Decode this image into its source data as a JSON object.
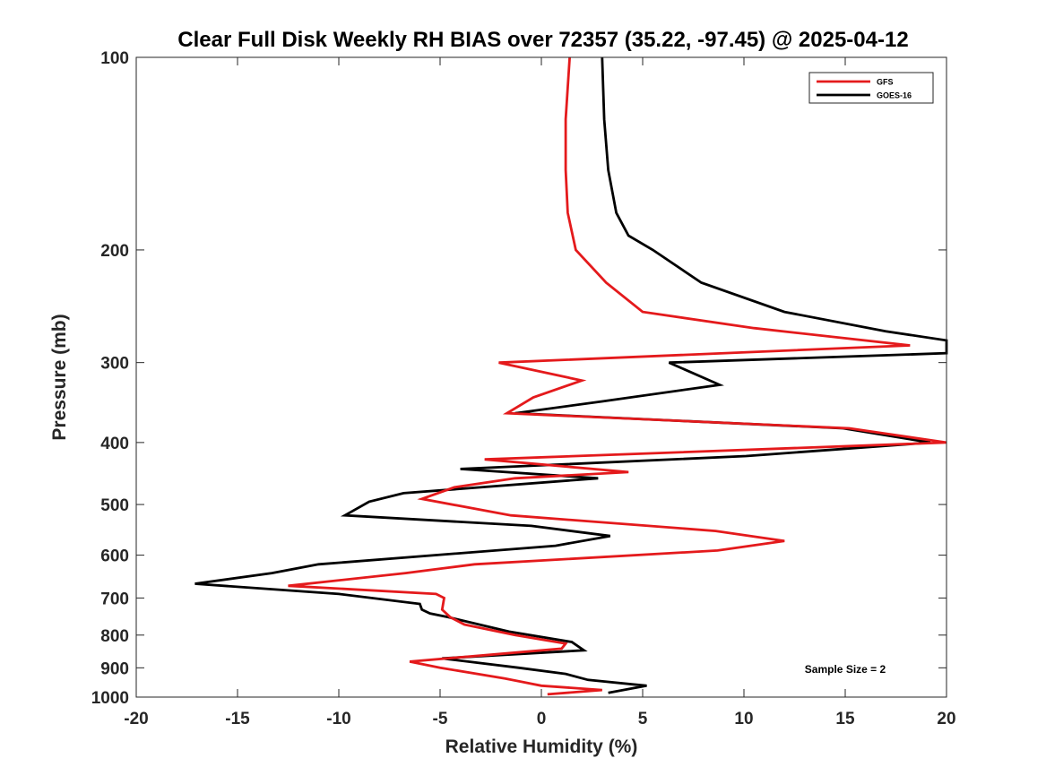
{
  "chart_data": {
    "type": "line",
    "title": "Clear Full Disk Weekly RH BIAS over 72357 (35.22, -97.45) @ 2025-04-12",
    "xlabel": "Relative Humidity (%)",
    "ylabel": "Pressure (mb)",
    "xlim": [
      -20,
      20
    ],
    "ylim": [
      100,
      1000
    ],
    "yscale": "log",
    "reverse_y": true,
    "xticks": [
      -20,
      -15,
      -10,
      -5,
      0,
      5,
      10,
      15,
      20
    ],
    "yticks": [
      100,
      200,
      300,
      400,
      500,
      600,
      700,
      800,
      900,
      1000
    ],
    "legend": {
      "position": "top-right"
    },
    "annotation": "Sample Size = 2",
    "series": [
      {
        "name": "GFS",
        "color": "#e41a1c",
        "points": [
          [
            1.4,
            100
          ],
          [
            1.2,
            125
          ],
          [
            1.2,
            150
          ],
          [
            1.3,
            175
          ],
          [
            1.7,
            200
          ],
          [
            3.2,
            225
          ],
          [
            5.0,
            250
          ],
          [
            10.5,
            265
          ],
          [
            18.2,
            282
          ],
          [
            -2.1,
            300
          ],
          [
            2.0,
            320
          ],
          [
            -0.4,
            340
          ],
          [
            -1.7,
            360
          ],
          [
            15.2,
            380
          ],
          [
            20.0,
            400
          ],
          [
            -2.8,
            425
          ],
          [
            4.3,
            445
          ],
          [
            -1.3,
            455
          ],
          [
            -4.3,
            470
          ],
          [
            -5.9,
            490
          ],
          [
            -1.5,
            520
          ],
          [
            8.6,
            550
          ],
          [
            12.0,
            570
          ],
          [
            8.7,
            590
          ],
          [
            -3.3,
            620
          ],
          [
            -6.7,
            640
          ],
          [
            -12.5,
            670
          ],
          [
            -5.2,
            690
          ],
          [
            -4.8,
            700
          ],
          [
            -4.9,
            730
          ],
          [
            -4.5,
            750
          ],
          [
            -3.8,
            770
          ],
          [
            -1.3,
            800
          ],
          [
            1.2,
            825
          ],
          [
            1.0,
            840
          ],
          [
            -6.5,
            880
          ],
          [
            -5.0,
            900
          ],
          [
            -1.8,
            935
          ],
          [
            0.0,
            960
          ],
          [
            3.0,
            975
          ],
          [
            0.3,
            990
          ]
        ]
      },
      {
        "name": "GOES-16",
        "color": "#000000",
        "points": [
          [
            3.0,
            100
          ],
          [
            3.1,
            125
          ],
          [
            3.3,
            150
          ],
          [
            3.7,
            175
          ],
          [
            4.3,
            190
          ],
          [
            5.5,
            200
          ],
          [
            7.9,
            225
          ],
          [
            12.0,
            250
          ],
          [
            17.0,
            268
          ],
          [
            20.0,
            277
          ],
          [
            20.0,
            290
          ],
          [
            6.3,
            300
          ],
          [
            8.8,
            325
          ],
          [
            3.0,
            345
          ],
          [
            -1.3,
            360
          ],
          [
            14.9,
            380
          ],
          [
            19.2,
            400
          ],
          [
            10.1,
            420
          ],
          [
            -4.0,
            440
          ],
          [
            2.8,
            455
          ],
          [
            -6.8,
            480
          ],
          [
            -8.5,
            495
          ],
          [
            -9.7,
            520
          ],
          [
            -0.5,
            540
          ],
          [
            3.4,
            560
          ],
          [
            0.7,
            580
          ],
          [
            -11.0,
            620
          ],
          [
            -13.3,
            640
          ],
          [
            -17.1,
            665
          ],
          [
            -10.0,
            690
          ],
          [
            -6.0,
            715
          ],
          [
            -5.9,
            730
          ],
          [
            -5.5,
            740
          ],
          [
            -4.6,
            750
          ],
          [
            -1.6,
            790
          ],
          [
            1.5,
            820
          ],
          [
            2.1,
            845
          ],
          [
            -4.9,
            870
          ],
          [
            -1.1,
            900
          ],
          [
            1.2,
            920
          ],
          [
            2.3,
            940
          ],
          [
            5.2,
            960
          ],
          [
            3.3,
            985
          ]
        ]
      }
    ]
  }
}
